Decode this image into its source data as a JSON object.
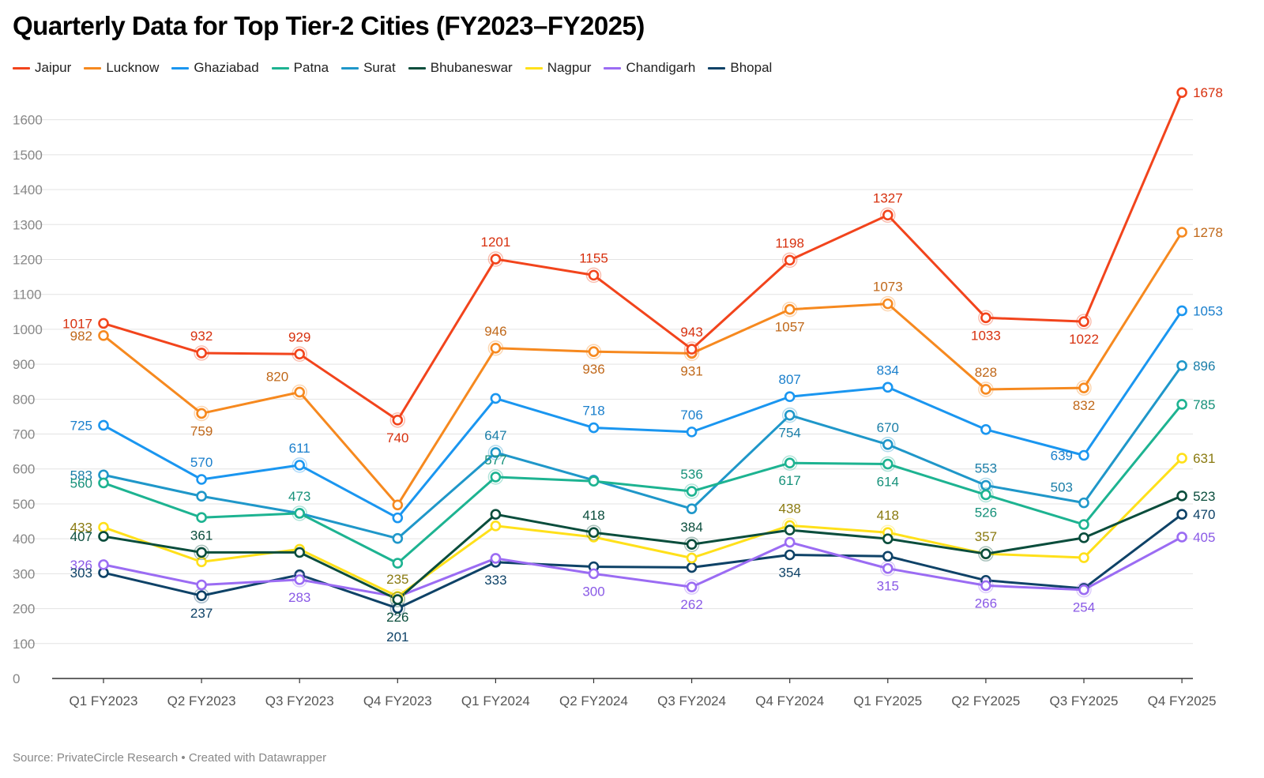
{
  "title": "Quarterly Data for Top Tier-2 Cities (FY2023–FY2025)",
  "footer": "Source: PrivateCircle Research • Created with Datawrapper",
  "chart_data": {
    "type": "line",
    "title": "Quarterly Data for Top Tier-2 Cities (FY2023–FY2025)",
    "categories": [
      "Q1 FY2023",
      "Q2 FY2023",
      "Q3 FY2023",
      "Q4 FY2023",
      "Q1 FY2024",
      "Q2 FY2024",
      "Q3 FY2024",
      "Q4 FY2024",
      "Q1 FY2025",
      "Q2 FY2025",
      "Q3 FY2025",
      "Q4 FY2025"
    ],
    "ylim": [
      0,
      1700
    ],
    "yticks": [
      0,
      100,
      200,
      300,
      400,
      500,
      600,
      700,
      800,
      900,
      1000,
      1100,
      1200,
      1300,
      1400,
      1500,
      1600
    ],
    "grid": true,
    "legend_position": "top-left",
    "series": [
      {
        "name": "Jaipur",
        "color": "#f2441c",
        "values": [
          1017,
          932,
          929,
          740,
          1201,
          1155,
          943,
          1198,
          1327,
          1033,
          1022,
          1678
        ]
      },
      {
        "name": "Lucknow",
        "color": "#f6891f",
        "values": [
          982,
          759,
          820,
          497,
          946,
          936,
          931,
          1057,
          1073,
          828,
          832,
          1278
        ]
      },
      {
        "name": "Ghaziabad",
        "color": "#1a96f0",
        "values": [
          725,
          570,
          611,
          460,
          802,
          718,
          706,
          807,
          834,
          713,
          639,
          1053
        ]
      },
      {
        "name": "Patna",
        "color": "#1db391",
        "values": [
          560,
          461,
          473,
          330,
          577,
          565,
          536,
          617,
          614,
          526,
          441,
          785
        ]
      },
      {
        "name": "Surat",
        "color": "#1f97c9",
        "values": [
          583,
          522,
          473,
          401,
          647,
          568,
          486,
          754,
          670,
          553,
          503,
          896
        ]
      },
      {
        "name": "Bhubaneswar",
        "color": "#0a4d3c",
        "values": [
          407,
          361,
          361,
          226,
          470,
          418,
          384,
          425,
          400,
          357,
          403,
          523
        ]
      },
      {
        "name": "Nagpur",
        "color": "#ffe01a",
        "values": [
          433,
          334,
          370,
          235,
          437,
          405,
          345,
          438,
          418,
          357,
          346,
          631
        ]
      },
      {
        "name": "Chandigarh",
        "color": "#9b6cf3",
        "values": [
          326,
          268,
          283,
          234,
          344,
          300,
          262,
          390,
          315,
          266,
          254,
          405
        ]
      },
      {
        "name": "Bhopal",
        "color": "#0e4267",
        "values": [
          303,
          237,
          297,
          201,
          333,
          320,
          318,
          354,
          350,
          281,
          258,
          470
        ]
      }
    ],
    "data_labels": [
      {
        "series": "Jaipur",
        "i": 0,
        "text": "1017",
        "pos": "left",
        "color": "#d7300e"
      },
      {
        "series": "Jaipur",
        "i": 1,
        "text": "932",
        "pos": "above",
        "color": "#d7300e"
      },
      {
        "series": "Jaipur",
        "i": 2,
        "text": "929",
        "pos": "above",
        "color": "#d7300e"
      },
      {
        "series": "Jaipur",
        "i": 3,
        "text": "740",
        "pos": "below",
        "color": "#d7300e"
      },
      {
        "series": "Jaipur",
        "i": 4,
        "text": "1201",
        "pos": "above",
        "color": "#d7300e"
      },
      {
        "series": "Jaipur",
        "i": 5,
        "text": "1155",
        "pos": "above",
        "color": "#d7300e"
      },
      {
        "series": "Jaipur",
        "i": 6,
        "text": "943",
        "pos": "above",
        "color": "#d7300e"
      },
      {
        "series": "Jaipur",
        "i": 7,
        "text": "1198",
        "pos": "above",
        "color": "#d7300e"
      },
      {
        "series": "Jaipur",
        "i": 8,
        "text": "1327",
        "pos": "above",
        "color": "#d7300e"
      },
      {
        "series": "Jaipur",
        "i": 9,
        "text": "1033",
        "pos": "below",
        "color": "#d7300e"
      },
      {
        "series": "Jaipur",
        "i": 10,
        "text": "1022",
        "pos": "below",
        "color": "#d7300e"
      },
      {
        "series": "Jaipur",
        "i": 11,
        "text": "1678",
        "pos": "right",
        "color": "#d7300e"
      },
      {
        "series": "Lucknow",
        "i": 0,
        "text": "982",
        "pos": "left",
        "color": "#c0681a"
      },
      {
        "series": "Lucknow",
        "i": 1,
        "text": "759",
        "pos": "below",
        "color": "#c0681a"
      },
      {
        "series": "Lucknow",
        "i": 2,
        "text": "820",
        "pos": "upleft",
        "color": "#c0681a"
      },
      {
        "series": "Lucknow",
        "i": 4,
        "text": "946",
        "pos": "above",
        "color": "#c0681a"
      },
      {
        "series": "Lucknow",
        "i": 5,
        "text": "936",
        "pos": "below",
        "color": "#c0681a"
      },
      {
        "series": "Lucknow",
        "i": 6,
        "text": "931",
        "pos": "below",
        "color": "#c0681a"
      },
      {
        "series": "Lucknow",
        "i": 7,
        "text": "1057",
        "pos": "below",
        "color": "#c0681a"
      },
      {
        "series": "Lucknow",
        "i": 8,
        "text": "1073",
        "pos": "above",
        "color": "#c0681a"
      },
      {
        "series": "Lucknow",
        "i": 9,
        "text": "828",
        "pos": "above",
        "color": "#c0681a"
      },
      {
        "series": "Lucknow",
        "i": 10,
        "text": "832",
        "pos": "below",
        "color": "#c0681a"
      },
      {
        "series": "Lucknow",
        "i": 11,
        "text": "1278",
        "pos": "right",
        "color": "#c0681a"
      },
      {
        "series": "Ghaziabad",
        "i": 0,
        "text": "725",
        "pos": "left",
        "color": "#1a7fcc"
      },
      {
        "series": "Ghaziabad",
        "i": 1,
        "text": "570",
        "pos": "above",
        "color": "#1a7fcc"
      },
      {
        "series": "Ghaziabad",
        "i": 2,
        "text": "611",
        "pos": "above",
        "color": "#1a7fcc"
      },
      {
        "series": "Ghaziabad",
        "i": 5,
        "text": "718",
        "pos": "above",
        "color": "#1a7fcc"
      },
      {
        "series": "Ghaziabad",
        "i": 6,
        "text": "706",
        "pos": "above",
        "color": "#1a7fcc"
      },
      {
        "series": "Ghaziabad",
        "i": 7,
        "text": "807",
        "pos": "above",
        "color": "#1a7fcc"
      },
      {
        "series": "Ghaziabad",
        "i": 8,
        "text": "834",
        "pos": "above",
        "color": "#1a7fcc"
      },
      {
        "series": "Ghaziabad",
        "i": 10,
        "text": "639",
        "pos": "left",
        "color": "#1a7fcc"
      },
      {
        "series": "Ghaziabad",
        "i": 11,
        "text": "1053",
        "pos": "right",
        "color": "#1a7fcc"
      },
      {
        "series": "Surat",
        "i": 0,
        "text": "583",
        "pos": "left",
        "color": "#1a7ea8"
      },
      {
        "series": "Surat",
        "i": 4,
        "text": "647",
        "pos": "above",
        "color": "#1a7ea8"
      },
      {
        "series": "Surat",
        "i": 7,
        "text": "754",
        "pos": "below",
        "color": "#1a7ea8"
      },
      {
        "series": "Surat",
        "i": 8,
        "text": "670",
        "pos": "above",
        "color": "#1a7ea8"
      },
      {
        "series": "Surat",
        "i": 9,
        "text": "553",
        "pos": "above",
        "color": "#1a7ea8"
      },
      {
        "series": "Surat",
        "i": 10,
        "text": "503",
        "pos": "upleft",
        "color": "#1a7ea8"
      },
      {
        "series": "Surat",
        "i": 11,
        "text": "896",
        "pos": "right",
        "color": "#1a7ea8"
      },
      {
        "series": "Patna",
        "i": 0,
        "text": "560",
        "pos": "left",
        "color": "#16917a"
      },
      {
        "series": "Patna",
        "i": 2,
        "text": "473",
        "pos": "above",
        "color": "#16917a"
      },
      {
        "series": "Patna",
        "i": 4,
        "text": "577",
        "pos": "above",
        "color": "#16917a"
      },
      {
        "series": "Patna",
        "i": 6,
        "text": "536",
        "pos": "above",
        "color": "#16917a"
      },
      {
        "series": "Patna",
        "i": 7,
        "text": "617",
        "pos": "below",
        "color": "#16917a"
      },
      {
        "series": "Patna",
        "i": 8,
        "text": "614",
        "pos": "below",
        "color": "#16917a"
      },
      {
        "series": "Patna",
        "i": 9,
        "text": "526",
        "pos": "below",
        "color": "#16917a"
      },
      {
        "series": "Patna",
        "i": 11,
        "text": "785",
        "pos": "right",
        "color": "#16917a"
      },
      {
        "series": "Nagpur",
        "i": 0,
        "text": "433",
        "pos": "left",
        "color": "#8a7a10"
      },
      {
        "series": "Nagpur",
        "i": 3,
        "text": "235",
        "pos": "above",
        "color": "#8a7a10"
      },
      {
        "series": "Nagpur",
        "i": 7,
        "text": "438",
        "pos": "above",
        "color": "#8a7a10"
      },
      {
        "series": "Nagpur",
        "i": 8,
        "text": "418",
        "pos": "above",
        "color": "#8a7a10"
      },
      {
        "series": "Nagpur",
        "i": 9,
        "text": "357",
        "pos": "above",
        "color": "#8a7a10"
      },
      {
        "series": "Nagpur",
        "i": 11,
        "text": "631",
        "pos": "right",
        "color": "#8a7a10"
      },
      {
        "series": "Bhubaneswar",
        "i": 0,
        "text": "407",
        "pos": "left",
        "color": "#0a4d3c"
      },
      {
        "series": "Bhubaneswar",
        "i": 1,
        "text": "361",
        "pos": "above",
        "color": "#0a4d3c"
      },
      {
        "series": "Bhubaneswar",
        "i": 3,
        "text": "226",
        "pos": "below",
        "color": "#0a4d3c"
      },
      {
        "series": "Bhubaneswar",
        "i": 5,
        "text": "418",
        "pos": "above",
        "color": "#0a4d3c"
      },
      {
        "series": "Bhubaneswar",
        "i": 6,
        "text": "384",
        "pos": "above",
        "color": "#0a4d3c"
      },
      {
        "series": "Bhubaneswar",
        "i": 11,
        "text": "523",
        "pos": "right",
        "color": "#0a4d3c"
      },
      {
        "series": "Chandigarh",
        "i": 0,
        "text": "326",
        "pos": "left",
        "color": "#8a5ae6"
      },
      {
        "series": "Chandigarh",
        "i": 2,
        "text": "283",
        "pos": "below",
        "color": "#8a5ae6"
      },
      {
        "series": "Chandigarh",
        "i": 5,
        "text": "300",
        "pos": "below",
        "color": "#8a5ae6"
      },
      {
        "series": "Chandigarh",
        "i": 6,
        "text": "262",
        "pos": "below",
        "color": "#8a5ae6"
      },
      {
        "series": "Chandigarh",
        "i": 8,
        "text": "315",
        "pos": "below",
        "color": "#8a5ae6"
      },
      {
        "series": "Chandigarh",
        "i": 9,
        "text": "266",
        "pos": "below",
        "color": "#8a5ae6"
      },
      {
        "series": "Chandigarh",
        "i": 10,
        "text": "254",
        "pos": "below",
        "color": "#8a5ae6"
      },
      {
        "series": "Chandigarh",
        "i": 11,
        "text": "405",
        "pos": "right",
        "color": "#8a5ae6"
      },
      {
        "series": "Bhopal",
        "i": 0,
        "text": "303",
        "pos": "left",
        "color": "#0e4267"
      },
      {
        "series": "Bhopal",
        "i": 1,
        "text": "237",
        "pos": "below",
        "color": "#0e4267"
      },
      {
        "series": "Bhopal",
        "i": 3,
        "text": "201",
        "pos": "below2",
        "color": "#0e4267"
      },
      {
        "series": "Bhopal",
        "i": 4,
        "text": "333",
        "pos": "below",
        "color": "#0e4267"
      },
      {
        "series": "Bhopal",
        "i": 7,
        "text": "354",
        "pos": "below",
        "color": "#0e4267"
      },
      {
        "series": "Bhopal",
        "i": 11,
        "text": "470",
        "pos": "right",
        "color": "#0e4267"
      }
    ],
    "highlighted_points": [
      {
        "series": "Jaipur",
        "i": [
          1,
          2,
          3,
          4,
          5,
          6,
          7,
          8,
          9,
          10
        ]
      },
      {
        "series": "Lucknow",
        "i": [
          1,
          2,
          4,
          5,
          6,
          7,
          8,
          9,
          10
        ]
      },
      {
        "series": "Ghaziabad",
        "i": [
          2
        ]
      },
      {
        "series": "Surat",
        "i": [
          4,
          7,
          8,
          9
        ]
      },
      {
        "series": "Patna",
        "i": [
          2,
          4,
          6,
          7,
          8,
          9
        ]
      },
      {
        "series": "Nagpur",
        "i": [
          3,
          7,
          8
        ]
      },
      {
        "series": "Bhubaneswar",
        "i": [
          1,
          3,
          5,
          6,
          9
        ]
      },
      {
        "series": "Chandigarh",
        "i": [
          2,
          6,
          8,
          9,
          10
        ]
      },
      {
        "series": "Bhopal",
        "i": [
          1,
          3
        ]
      }
    ]
  }
}
